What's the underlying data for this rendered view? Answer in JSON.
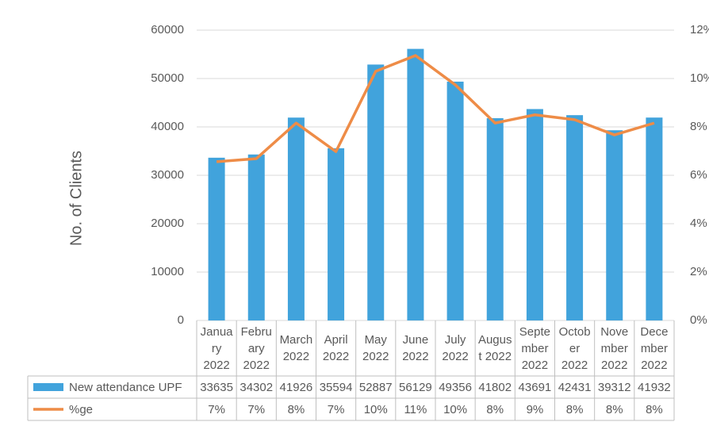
{
  "chart_data": {
    "type": "bar-line",
    "ylabel": "No. of Clients",
    "categories": [
      "January 2022",
      "February 2022",
      "March 2022",
      "April 2022",
      "May 2022",
      "June 2022",
      "July 2022",
      "August 2022",
      "September 2022",
      "October 2022",
      "November 2022",
      "December 2022"
    ],
    "series": [
      {
        "name": "New attendance UPF",
        "type": "bar",
        "color": "#41a3dc",
        "values": [
          33635,
          34302,
          41926,
          35594,
          52887,
          56129,
          49356,
          41802,
          43691,
          42431,
          39312,
          41932
        ]
      },
      {
        "name": "%ge",
        "type": "line",
        "axis": "y2",
        "color": "#ee8c47",
        "values": [
          6.56,
          6.69,
          8.16,
          6.98,
          10.3,
          10.95,
          9.74,
          8.16,
          8.5,
          8.3,
          7.67,
          8.16
        ],
        "value_labels": [
          "7%",
          "7%",
          "8%",
          "7%",
          "10%",
          "11%",
          "10%",
          "8%",
          "9%",
          "8%",
          "8%",
          "8%"
        ]
      }
    ],
    "ylim": [
      0,
      60000
    ],
    "yticks": [
      0,
      10000,
      20000,
      30000,
      40000,
      50000,
      60000
    ],
    "y2lim": [
      0,
      12
    ],
    "y2ticks": [
      {
        "value": 0,
        "label": "0%"
      },
      {
        "value": 2,
        "label": "2%"
      },
      {
        "value": 4,
        "label": "4%"
      },
      {
        "value": 6,
        "label": "6%"
      },
      {
        "value": 8,
        "label": "8%"
      },
      {
        "value": 10,
        "label": "10%"
      },
      {
        "value": 12,
        "label": "12%"
      }
    ],
    "grid": true
  }
}
